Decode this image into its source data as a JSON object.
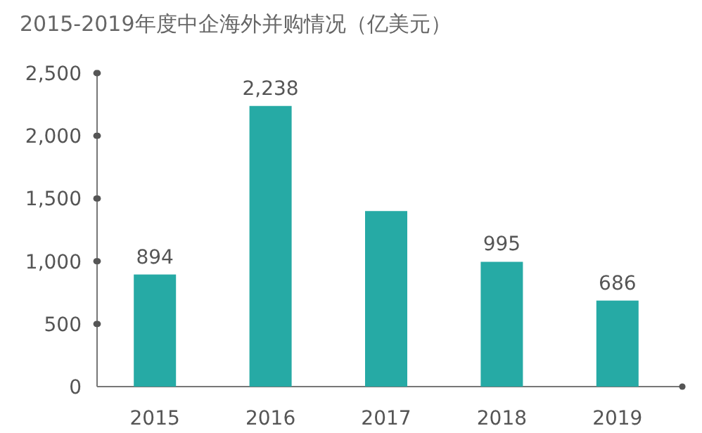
{
  "chart_data": {
    "type": "bar",
    "title": "2015-2019年度中企海外并购情况（亿美元）",
    "categories": [
      "2015",
      "2016",
      "2017",
      "2018",
      "2019"
    ],
    "values": [
      894,
      2238,
      1400,
      995,
      686
    ],
    "value_labels": [
      "894",
      "2,238",
      null,
      "995",
      "686"
    ],
    "color": "#26aaa5",
    "ylim": [
      0,
      2500
    ],
    "yticks": [
      {
        "value": 0,
        "label": "0"
      },
      {
        "value": 500,
        "label": "500"
      },
      {
        "value": 1000,
        "label": "1,000"
      },
      {
        "value": 1500,
        "label": "1,500"
      },
      {
        "value": 2000,
        "label": "2,000"
      },
      {
        "value": 2500,
        "label": "2,500"
      }
    ],
    "grid": false
  }
}
